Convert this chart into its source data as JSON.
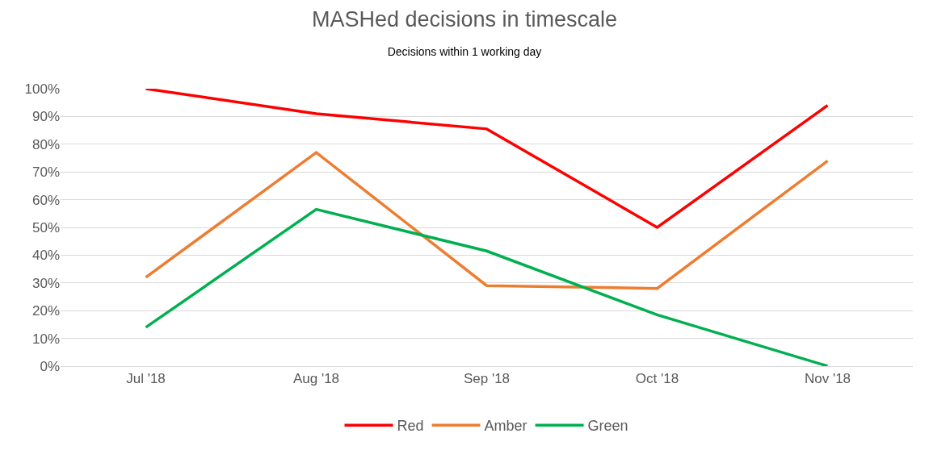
{
  "chart_data": {
    "type": "line",
    "title": "MASHed decisions in timescale",
    "subtitle": "Decisions within 1 working day",
    "categories": [
      "Jul '18",
      "Aug '18",
      "Sep '18",
      "Oct '18",
      "Nov '18"
    ],
    "series": [
      {
        "name": "Red",
        "color": "#ff0000",
        "values": [
          100,
          91,
          85.5,
          50,
          94
        ]
      },
      {
        "name": "Amber",
        "color": "#ed7d31",
        "values": [
          32,
          77,
          29,
          28,
          74
        ]
      },
      {
        "name": "Green",
        "color": "#00b050",
        "values": [
          14,
          56.5,
          41.5,
          18.5,
          0
        ]
      }
    ],
    "ylim": [
      0,
      100
    ],
    "yticks": [
      {
        "value": 0,
        "label": "0%"
      },
      {
        "value": 10,
        "label": "10%"
      },
      {
        "value": 20,
        "label": "20%"
      },
      {
        "value": 30,
        "label": "30%"
      },
      {
        "value": 40,
        "label": "40%"
      },
      {
        "value": 50,
        "label": "50%"
      },
      {
        "value": 60,
        "label": "60%"
      },
      {
        "value": 70,
        "label": "70%"
      },
      {
        "value": 80,
        "label": "80%"
      },
      {
        "value": 90,
        "label": "90%"
      },
      {
        "value": 100,
        "label": "100%"
      }
    ],
    "grid": "y",
    "legend": "bottom",
    "marker": "none",
    "line_style": "solid"
  }
}
